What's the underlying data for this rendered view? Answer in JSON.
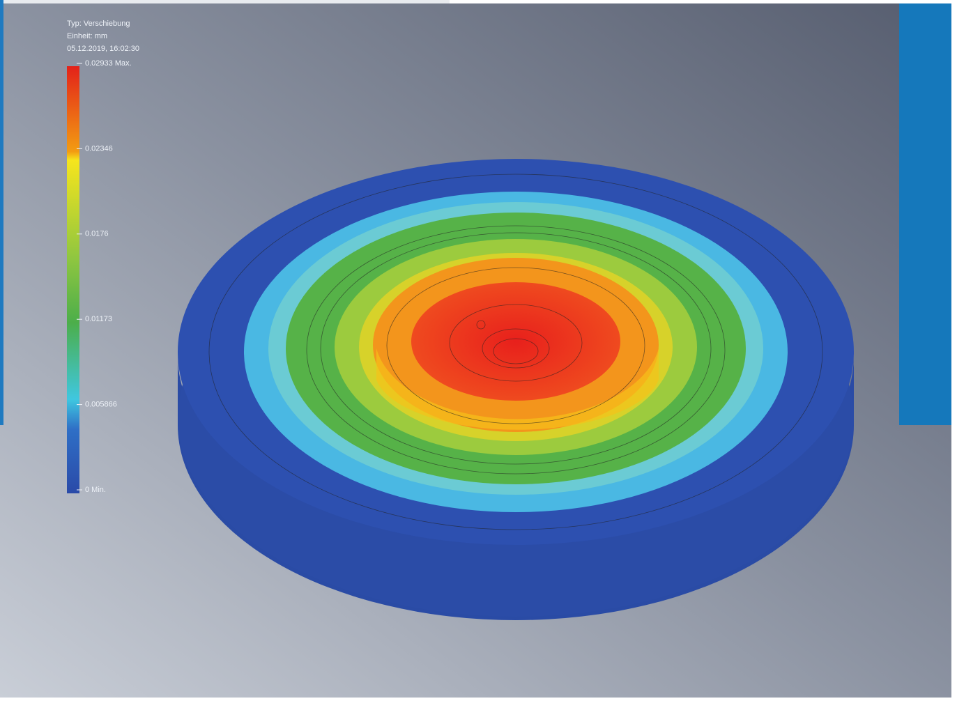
{
  "header": {
    "type": "Typ: Verschiebung",
    "unit": "Einheit: mm",
    "date": "05.12.2019, 16:02:30"
  },
  "legend": {
    "labels": [
      "0.02933 Max.",
      "0.02346",
      "0.0176",
      "0.01173",
      "0.005866",
      "0 Min."
    ]
  }
}
